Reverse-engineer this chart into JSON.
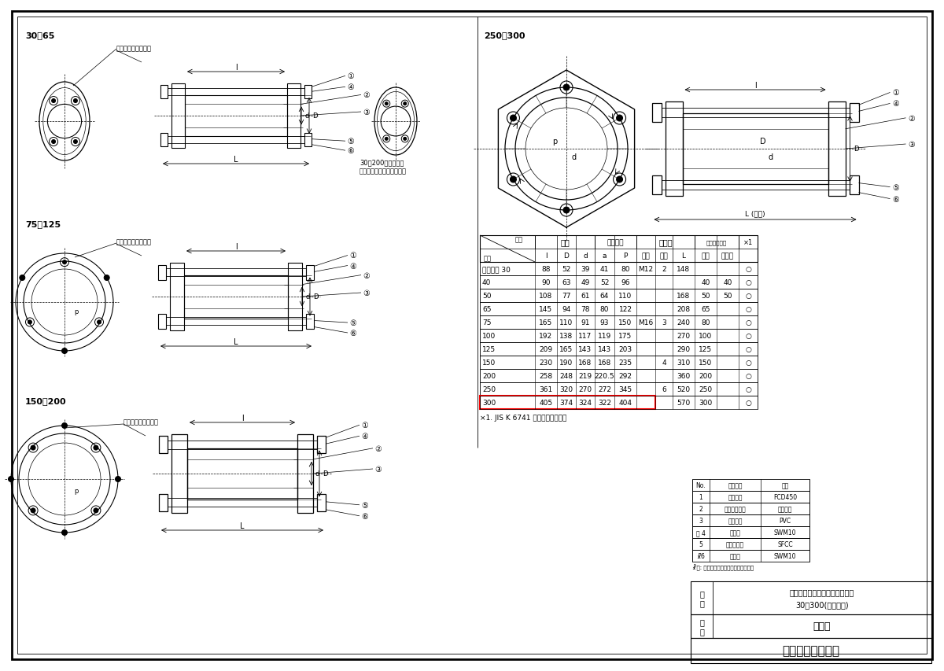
{
  "title": "製品図",
  "company": "東栄管機株式会社",
  "product_name": "トーエーギボルト式ジョイント",
  "product_name2": "30～300(伸縮継手)",
  "bg_color": "#ffffff",
  "rows": [
    [
      "ギボルト 30",
      "88",
      "52",
      "39",
      "41",
      "80",
      "M12",
      "2",
      "148",
      "",
      "",
      "○"
    ],
    [
      "40",
      "90",
      "63",
      "49",
      "52",
      "96",
      "",
      "",
      "",
      "40",
      "40",
      "○"
    ],
    [
      "50",
      "108",
      "77",
      "61",
      "64",
      "110",
      "",
      "",
      "168",
      "50",
      "50",
      "○"
    ],
    [
      "65",
      "145",
      "94",
      "78",
      "80",
      "122",
      "",
      "",
      "208",
      "65",
      "",
      "○"
    ],
    [
      "75",
      "165",
      "110",
      "91",
      "93",
      "150",
      "M16",
      "3",
      "240",
      "80",
      "",
      "○"
    ],
    [
      "100",
      "192",
      "138",
      "117",
      "119",
      "175",
      "",
      "",
      "270",
      "100",
      "",
      "○"
    ],
    [
      "125",
      "209",
      "165",
      "143",
      "143",
      "203",
      "",
      "",
      "290",
      "125",
      "",
      "○"
    ],
    [
      "150",
      "230",
      "190",
      "168",
      "168",
      "235",
      "",
      "4",
      "310",
      "150",
      "",
      "○"
    ],
    [
      "200",
      "258",
      "248",
      "219",
      "220.5",
      "292",
      "",
      "",
      "360",
      "200",
      "",
      "○"
    ],
    [
      "250",
      "361",
      "320",
      "270",
      "272",
      "345",
      "",
      "6",
      "520",
      "250",
      "",
      "○"
    ],
    [
      "300",
      "405",
      "374",
      "324",
      "322",
      "404",
      "",
      "",
      "570",
      "300",
      "",
      "○"
    ]
  ],
  "highlighted_row": 10,
  "note1": "×1. JIS K 6741 のパイプに適応。",
  "parts_table": [
    [
      "No.",
      "部品名称",
      "材料"
    ],
    [
      "1",
      "フランジ",
      "FCD450"
    ],
    [
      "2",
      "コムパッキン",
      "天然ゴム"
    ],
    [
      "3",
      "フリーナ",
      "PVC"
    ],
    [
      "ホ 4",
      "ナット",
      "SWM10"
    ],
    [
      "5",
      "ワッシャー",
      "SFCC"
    ],
    [
      "☧6",
      "ボルト",
      "SWM10"
    ]
  ],
  "parts_note": "☧印: 鈴管のみっき処理してあります。",
  "label_30_65": "30～65",
  "label_75_125": "75～125",
  "label_150_200": "150・200",
  "label_250_300": "250・300",
  "stopper": "回り止めストッパー",
  "note_no_stopper": "30～200まで筒略、\n回り止めストッパーなし。",
  "dim_L_full": "L (全長)"
}
